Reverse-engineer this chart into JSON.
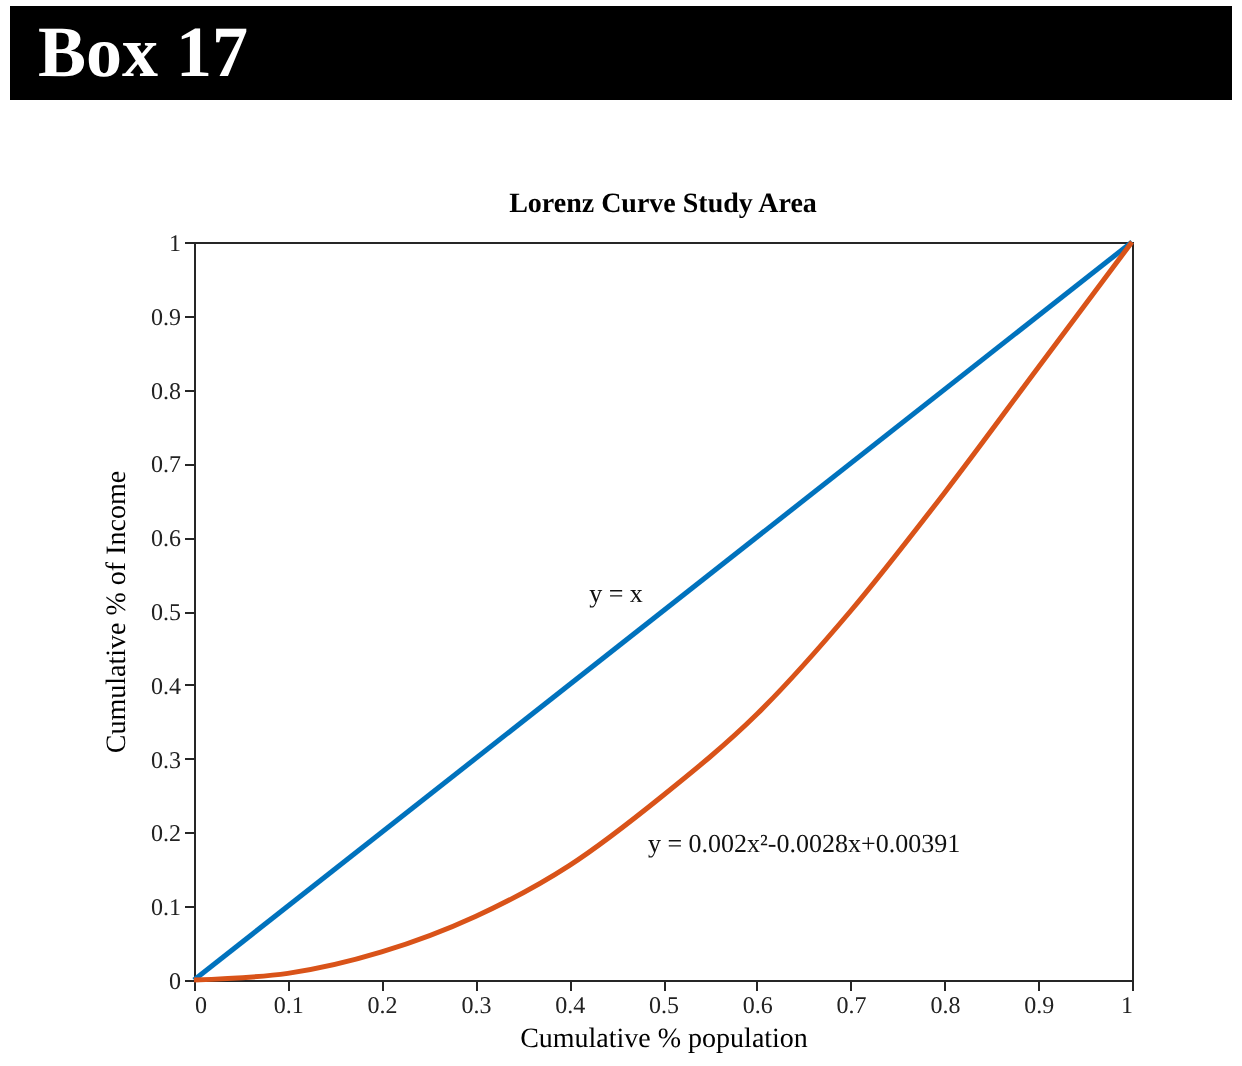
{
  "chart_data": {
    "type": "line",
    "title": "Lorenz Curve Study Area",
    "xlabel": "Cumulative % population",
    "ylabel": "Cumulative % of Income",
    "annotations": [
      "Box 17",
      "y = x",
      "y = 0.002x²-0.0028x+0.00391"
    ],
    "series": [
      {
        "color": "#0072bd",
        "x": [
          0,
          1
        ],
        "values": [
          0,
          1
        ]
      },
      {
        "color": "#d95319",
        "x": [
          0,
          0.1,
          0.2,
          0.3,
          0.4,
          0.5,
          0.6,
          0.7,
          0.8,
          0.9,
          1
        ],
        "values": [
          0,
          0.009,
          0.038,
          0.086,
          0.155,
          0.25,
          0.36,
          0.5,
          0.66,
          0.83,
          1
        ]
      }
    ],
    "xlim": [
      0,
      1
    ],
    "ylim": [
      0,
      1
    ],
    "xticks": [
      0,
      0.1,
      0.2,
      0.3,
      0.4,
      0.5,
      0.6,
      0.7,
      0.8,
      0.9,
      1
    ],
    "yticks": [
      0,
      0.1,
      0.2,
      0.3,
      0.4,
      0.5,
      0.6,
      0.7,
      0.8,
      0.9,
      1
    ],
    "grid": false,
    "legend": false,
    "marker": "none",
    "line_style": "solid"
  }
}
